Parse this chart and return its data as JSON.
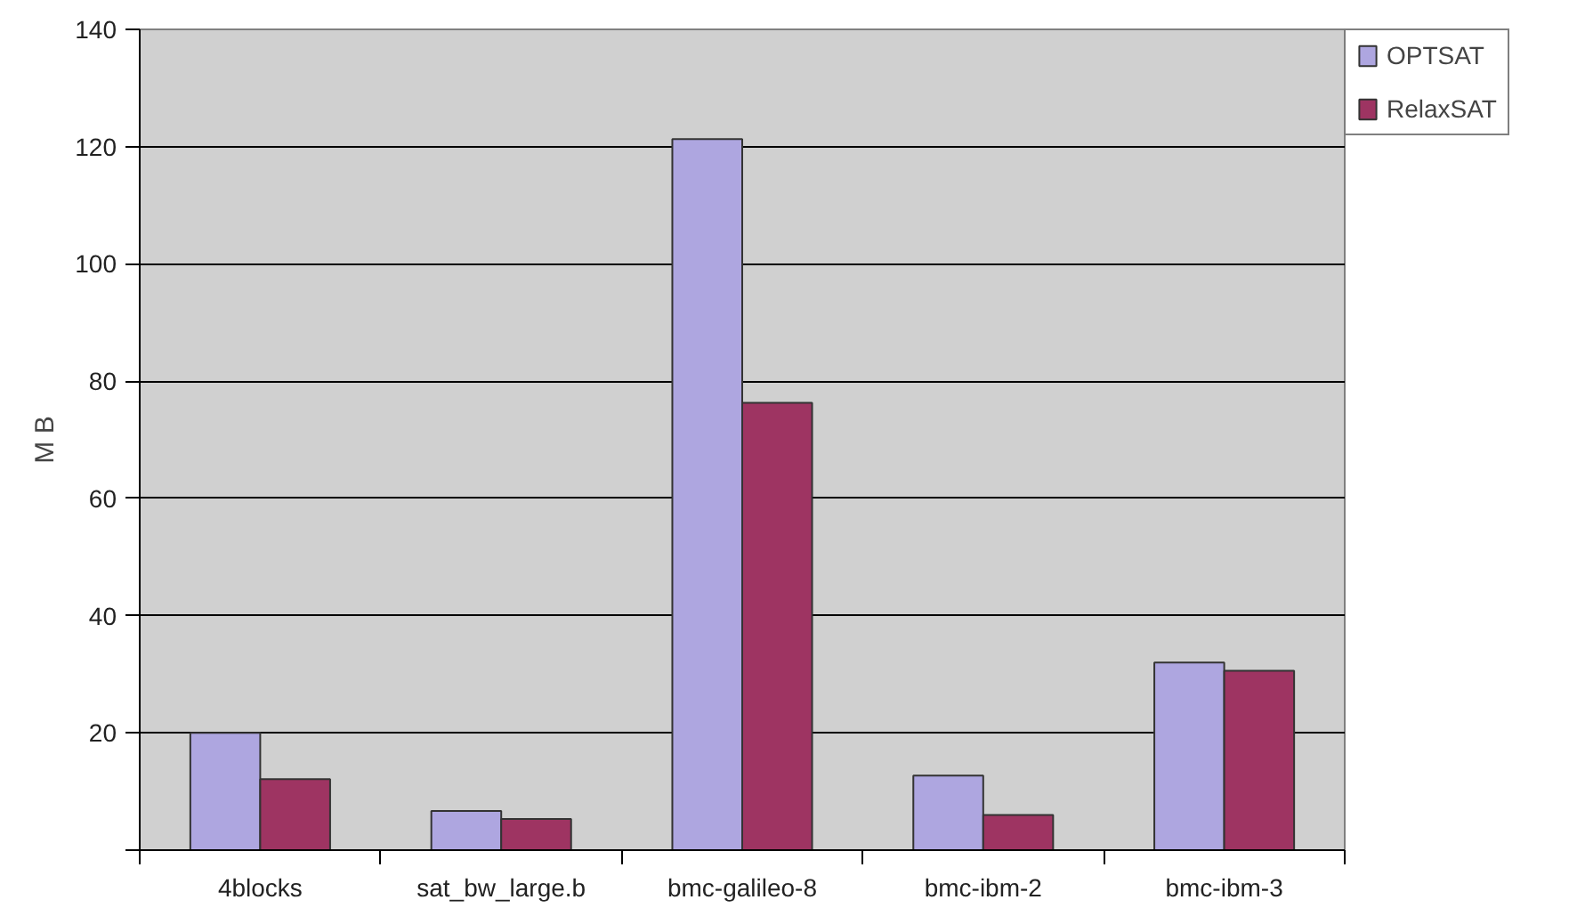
{
  "chart_data": {
    "type": "bar",
    "ylabel": "M B",
    "categories": [
      "4blocks",
      "sat_bw_large.b",
      "bmc-galileo-8",
      "bmc-ibm-2",
      "bmc-ibm-3"
    ],
    "series": [
      {
        "name": "OPTSAT",
        "color": "#aea6e0",
        "values": [
          20,
          6.7,
          121.3,
          12.7,
          32
        ]
      },
      {
        "name": "RelaxSAT",
        "color": "#9e3462",
        "values": [
          12.1,
          5.3,
          76.3,
          6.0,
          30.6
        ]
      }
    ],
    "ylim": [
      0,
      140
    ],
    "yticks": [
      {
        "value": 0,
        "label": null
      },
      20,
      40,
      60,
      80,
      100,
      120,
      140
    ],
    "grid": "y",
    "legend": "right"
  }
}
